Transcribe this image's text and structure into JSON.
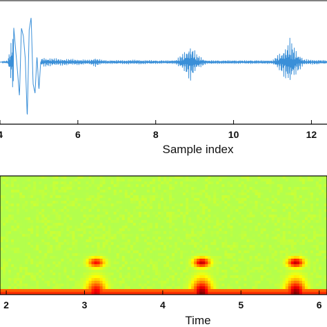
{
  "chart_data": [
    {
      "type": "line",
      "xlabel": "Sample index",
      "ylabel": "",
      "xlim": [
        4,
        12.4
      ],
      "ylim": [
        -1,
        1
      ],
      "xticks": [
        4,
        6,
        8,
        10,
        12
      ],
      "x_tick_labels": [
        "4",
        "6",
        "8",
        "10",
        "12"
      ],
      "grid": false,
      "line_color": "#3a8fd8",
      "series": [
        {
          "x": [
            4.0,
            4.2,
            4.35,
            4.45,
            4.5,
            4.55,
            4.6,
            4.65,
            4.7,
            4.75,
            4.8,
            4.85,
            4.9,
            4.95,
            5.0,
            5.05,
            5.1,
            5.5,
            6.0,
            6.3,
            6.45,
            6.6,
            6.8,
            7.5,
            8.0,
            8.5,
            8.75,
            8.9,
            9.05,
            9.3,
            10.0,
            10.5,
            11.0,
            11.25,
            11.45,
            11.6,
            11.8,
            12.4
          ],
          "y": [
            0.0,
            0.03,
            0.58,
            -0.15,
            -0.55,
            0.55,
            0.42,
            0.05,
            -0.9,
            0.52,
            0.72,
            -0.35,
            -0.5,
            0.1,
            -0.45,
            0.05,
            0.08,
            0.06,
            0.05,
            0.04,
            0.08,
            0.04,
            0.03,
            0.04,
            0.03,
            0.03,
            0.18,
            0.32,
            0.14,
            0.03,
            0.03,
            0.03,
            0.03,
            0.2,
            0.4,
            0.22,
            0.05,
            0.03
          ]
        }
      ]
    },
    {
      "type": "heatmap",
      "xlabel": "Time",
      "ylabel": "",
      "xlim": [
        1.92,
        6.1
      ],
      "xticks": [
        2,
        3,
        4,
        5,
        6
      ],
      "x_tick_labels": [
        "2",
        "3",
        "4",
        "5",
        "6"
      ],
      "colormap": "jet",
      "background_level": 0.55,
      "low_band_level": 0.85,
      "hotspots": [
        {
          "t": 3.15,
          "level": 0.92
        },
        {
          "t": 4.5,
          "level": 1.0
        },
        {
          "t": 5.7,
          "level": 1.0
        }
      ]
    }
  ]
}
